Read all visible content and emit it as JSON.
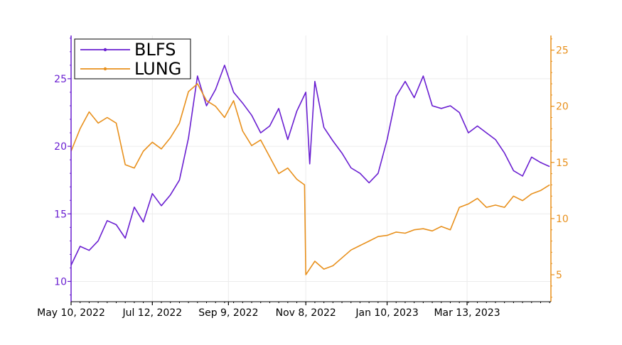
{
  "chart_data": {
    "type": "line",
    "x_axis": {
      "type": "date",
      "range": [
        "2022-05-10",
        "2023-05-17"
      ],
      "ticks": [
        {
          "date": "2022-05-10",
          "label": "May 10, 2022"
        },
        {
          "date": "2022-07-12",
          "label": "Jul 12, 2022"
        },
        {
          "date": "2022-09-09",
          "label": "Sep 9, 2022"
        },
        {
          "date": "2022-11-08",
          "label": "Nov 8, 2022"
        },
        {
          "date": "2023-01-10",
          "label": "Jan 10, 2023"
        },
        {
          "date": "2023-03-13",
          "label": "Mar 13, 2023"
        }
      ]
    },
    "y_left": {
      "range": [
        8.5,
        28.2
      ],
      "ticks": [
        10,
        15,
        20,
        25
      ],
      "color": "#6a1fd1"
    },
    "y_right": {
      "range": [
        2.6,
        26.3
      ],
      "ticks": [
        5,
        10,
        15,
        20,
        25
      ],
      "color": "#e8901c"
    },
    "grid": true,
    "legend": {
      "position": "top-left"
    },
    "series": [
      {
        "name": "BLFS",
        "axis": "left",
        "color": "#6a1fd1",
        "points": [
          [
            "2022-05-10",
            11.2
          ],
          [
            "2022-05-17",
            12.6
          ],
          [
            "2022-05-24",
            12.3
          ],
          [
            "2022-05-31",
            13.0
          ],
          [
            "2022-06-07",
            14.5
          ],
          [
            "2022-06-14",
            14.2
          ],
          [
            "2022-06-21",
            13.2
          ],
          [
            "2022-06-28",
            15.5
          ],
          [
            "2022-07-05",
            14.4
          ],
          [
            "2022-07-12",
            16.5
          ],
          [
            "2022-07-19",
            15.6
          ],
          [
            "2022-07-26",
            16.4
          ],
          [
            "2022-08-02",
            17.5
          ],
          [
            "2022-08-09",
            20.6
          ],
          [
            "2022-08-16",
            25.2
          ],
          [
            "2022-08-23",
            23.0
          ],
          [
            "2022-08-30",
            24.2
          ],
          [
            "2022-09-06",
            26.0
          ],
          [
            "2022-09-13",
            24.0
          ],
          [
            "2022-09-20",
            23.2
          ],
          [
            "2022-09-27",
            22.3
          ],
          [
            "2022-10-04",
            21.0
          ],
          [
            "2022-10-11",
            21.5
          ],
          [
            "2022-10-18",
            22.8
          ],
          [
            "2022-10-25",
            20.5
          ],
          [
            "2022-11-01",
            22.6
          ],
          [
            "2022-11-08",
            24.0
          ],
          [
            "2022-11-11",
            18.7
          ],
          [
            "2022-11-15",
            24.8
          ],
          [
            "2022-11-22",
            21.4
          ],
          [
            "2022-11-29",
            20.4
          ],
          [
            "2022-12-06",
            19.5
          ],
          [
            "2022-12-13",
            18.4
          ],
          [
            "2022-12-20",
            18.0
          ],
          [
            "2022-12-27",
            17.3
          ],
          [
            "2023-01-03",
            18.0
          ],
          [
            "2023-01-10",
            20.5
          ],
          [
            "2023-01-17",
            23.7
          ],
          [
            "2023-01-24",
            24.8
          ],
          [
            "2023-01-31",
            23.6
          ],
          [
            "2023-02-07",
            25.2
          ],
          [
            "2023-02-14",
            23.0
          ],
          [
            "2023-02-21",
            22.8
          ],
          [
            "2023-02-28",
            23.0
          ],
          [
            "2023-03-07",
            22.5
          ],
          [
            "2023-03-14",
            21.0
          ],
          [
            "2023-03-21",
            21.5
          ],
          [
            "2023-03-28",
            21.0
          ],
          [
            "2023-04-04",
            20.5
          ],
          [
            "2023-04-11",
            19.5
          ],
          [
            "2023-04-18",
            18.2
          ],
          [
            "2023-04-25",
            17.8
          ],
          [
            "2023-05-02",
            19.2
          ],
          [
            "2023-05-09",
            18.8
          ],
          [
            "2023-05-16",
            18.5
          ]
        ]
      },
      {
        "name": "LUNG",
        "axis": "right",
        "color": "#e8901c",
        "points": [
          [
            "2022-05-10",
            16.0
          ],
          [
            "2022-05-17",
            18.0
          ],
          [
            "2022-05-24",
            19.5
          ],
          [
            "2022-05-31",
            18.5
          ],
          [
            "2022-06-07",
            19.0
          ],
          [
            "2022-06-14",
            18.5
          ],
          [
            "2022-06-21",
            14.8
          ],
          [
            "2022-06-28",
            14.5
          ],
          [
            "2022-07-05",
            16.0
          ],
          [
            "2022-07-12",
            16.8
          ],
          [
            "2022-07-19",
            16.2
          ],
          [
            "2022-07-26",
            17.2
          ],
          [
            "2022-08-02",
            18.5
          ],
          [
            "2022-08-09",
            21.3
          ],
          [
            "2022-08-16",
            22.0
          ],
          [
            "2022-08-23",
            20.5
          ],
          [
            "2022-08-30",
            20.0
          ],
          [
            "2022-09-06",
            19.0
          ],
          [
            "2022-09-13",
            20.5
          ],
          [
            "2022-09-20",
            17.8
          ],
          [
            "2022-09-27",
            16.5
          ],
          [
            "2022-10-04",
            17.0
          ],
          [
            "2022-10-11",
            15.5
          ],
          [
            "2022-10-18",
            14.0
          ],
          [
            "2022-10-25",
            14.5
          ],
          [
            "2022-11-01",
            13.5
          ],
          [
            "2022-11-07",
            13.0
          ],
          [
            "2022-11-08",
            5.0
          ],
          [
            "2022-11-15",
            6.2
          ],
          [
            "2022-11-22",
            5.5
          ],
          [
            "2022-11-29",
            5.8
          ],
          [
            "2022-12-06",
            6.5
          ],
          [
            "2022-12-13",
            7.2
          ],
          [
            "2022-12-20",
            7.6
          ],
          [
            "2022-12-27",
            8.0
          ],
          [
            "2023-01-03",
            8.4
          ],
          [
            "2023-01-10",
            8.5
          ],
          [
            "2023-01-17",
            8.8
          ],
          [
            "2023-01-24",
            8.7
          ],
          [
            "2023-01-31",
            9.0
          ],
          [
            "2023-02-07",
            9.1
          ],
          [
            "2023-02-14",
            8.9
          ],
          [
            "2023-02-21",
            9.3
          ],
          [
            "2023-02-28",
            9.0
          ],
          [
            "2023-03-07",
            11.0
          ],
          [
            "2023-03-14",
            11.3
          ],
          [
            "2023-03-21",
            11.8
          ],
          [
            "2023-03-28",
            11.0
          ],
          [
            "2023-04-04",
            11.2
          ],
          [
            "2023-04-11",
            11.0
          ],
          [
            "2023-04-18",
            12.0
          ],
          [
            "2023-04-25",
            11.6
          ],
          [
            "2023-05-02",
            12.2
          ],
          [
            "2023-05-09",
            12.5
          ],
          [
            "2023-05-16",
            13.0
          ]
        ]
      }
    ]
  }
}
